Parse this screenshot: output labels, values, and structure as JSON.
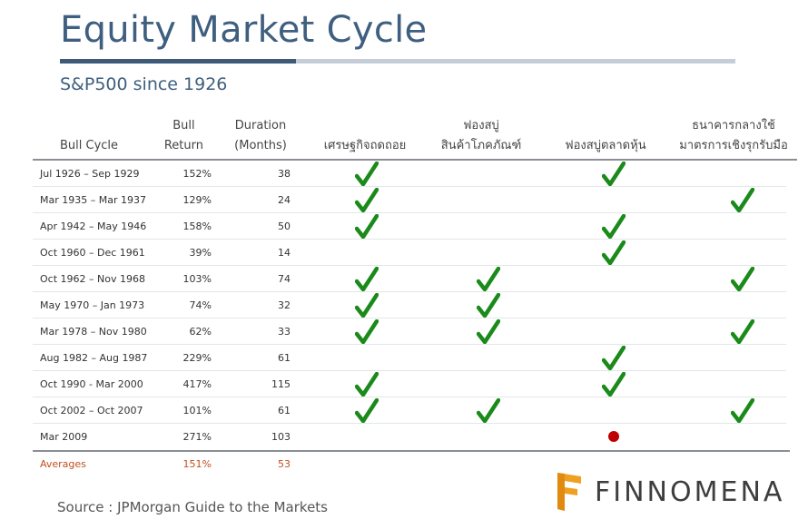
{
  "title": "Equity Market Cycle",
  "subtitle": "S&P500 since 1926",
  "headers": {
    "bull_cycle": "Bull Cycle",
    "bull_return": [
      "Bull",
      "Return"
    ],
    "duration": [
      "Duration",
      "(Months)"
    ],
    "recession": "เศรษฐกิจถดถอย",
    "commodity_bubble": [
      "ฟองสบู่",
      "สินค้าโภคภัณฑ์"
    ],
    "stock_bubble": "ฟองสบู่ตลาดหุ้น",
    "central_bank": [
      "ธนาคารกลางใช้",
      "มาตรการเชิงรุกรับมือ"
    ]
  },
  "rows": [
    {
      "cycle": "Jul 1926 – Sep 1929",
      "return": "152%",
      "duration": "38",
      "recession": true,
      "commodity": false,
      "stock": true,
      "central": false
    },
    {
      "cycle": "Mar 1935 – Mar 1937",
      "return": "129%",
      "duration": "24",
      "recession": true,
      "commodity": false,
      "stock": false,
      "central": true
    },
    {
      "cycle": "Apr 1942 – May 1946",
      "return": "158%",
      "duration": "50",
      "recession": true,
      "commodity": false,
      "stock": true,
      "central": false
    },
    {
      "cycle": "Oct 1960 – Dec 1961",
      "return": "39%",
      "duration": "14",
      "recession": false,
      "commodity": false,
      "stock": true,
      "central": false
    },
    {
      "cycle": "Oct 1962 – Nov 1968",
      "return": "103%",
      "duration": "74",
      "recession": true,
      "commodity": true,
      "stock": false,
      "central": true
    },
    {
      "cycle": "May 1970 – Jan 1973",
      "return": "74%",
      "duration": "32",
      "recession": true,
      "commodity": true,
      "stock": false,
      "central": false
    },
    {
      "cycle": "Mar 1978 – Nov 1980",
      "return": "62%",
      "duration": "33",
      "recession": true,
      "commodity": true,
      "stock": false,
      "central": true
    },
    {
      "cycle": "Aug 1982 – Aug 1987",
      "return": "229%",
      "duration": "61",
      "recession": false,
      "commodity": false,
      "stock": true,
      "central": false
    },
    {
      "cycle": "Oct 1990 - Mar 2000",
      "return": "417%",
      "duration": "115",
      "recession": true,
      "commodity": false,
      "stock": true,
      "central": false
    },
    {
      "cycle": "Oct 2002 – Oct 2007",
      "return": "101%",
      "duration": "61",
      "recession": true,
      "commodity": true,
      "stock": false,
      "central": true
    },
    {
      "cycle": "Mar 2009",
      "return": "271%",
      "duration": "103",
      "recession": false,
      "commodity": false,
      "stock": "dot",
      "central": false
    }
  ],
  "averages": {
    "label": "Averages",
    "return": "151%",
    "duration": "53"
  },
  "source": "Source : JPMorgan Guide to the Markets",
  "logo": {
    "text": "FINNOMENA",
    "icon": "finnomena-logo-icon",
    "color": "#f0a021"
  },
  "colors": {
    "title": "#3e5f7f",
    "check": "#1a8a1a",
    "dot": "#c00000",
    "averages": "#c0501e"
  }
}
